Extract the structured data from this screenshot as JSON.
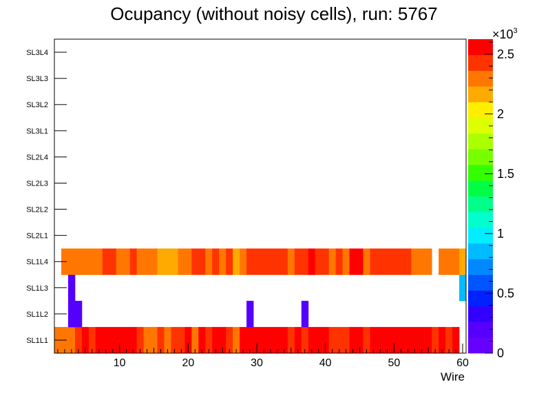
{
  "chart_data": {
    "type": "heatmap",
    "title": "Ocupancy (without noisy cells), run: 5767",
    "xlabel": "Wire",
    "ylabel": "",
    "xlim": [
      0.5,
      60.5
    ],
    "x_ticks": [
      "10",
      "20",
      "30",
      "40",
      "50",
      "60"
    ],
    "rows": [
      "SL1L1",
      "SL1L2",
      "SL1L3",
      "SL1L4",
      "SL2L1",
      "SL2L2",
      "SL2L3",
      "SL2L4",
      "SL3L1",
      "SL3L2",
      "SL3L3",
      "SL3L4"
    ],
    "z_range": [
      0,
      2625
    ],
    "colorbar": {
      "multiplier": "×10",
      "exponent": "3",
      "ticks": [
        "0",
        "0.5",
        "1",
        "1.5",
        "2",
        "2.5"
      ],
      "palette": [
        "#6600ff",
        "#5500ff",
        "#3300ff",
        "#0022ff",
        "#0055ff",
        "#0088ff",
        "#00bbff",
        "#00eeff",
        "#00ffcc",
        "#00ff88",
        "#00ff44",
        "#33ff00",
        "#77ff00",
        "#aaff00",
        "#ddff00",
        "#ffee00",
        "#ffaa00",
        "#ff7700",
        "#ff3300",
        "#ff0000"
      ]
    },
    "series": [
      {
        "name": "SL1L1",
        "values": [
          2260,
          2300,
          2260,
          2400,
          2530,
          2400,
          2530,
          2530,
          2530,
          2620,
          2620,
          2620,
          2400,
          2260,
          2260,
          2400,
          2260,
          2400,
          2400,
          2530,
          2260,
          2530,
          2400,
          2530,
          2530,
          2400,
          2260,
          2530,
          2530,
          2530,
          2530,
          2530,
          2620,
          2620,
          2400,
          2530,
          2400,
          2530,
          2530,
          2530,
          2400,
          2400,
          2400,
          2530,
          2620,
          2400,
          2620,
          2530,
          2620,
          2530,
          2530,
          2530,
          2530,
          2530,
          2530,
          2400,
          2530,
          2400,
          2530,
          null
        ]
      },
      {
        "name": "SL1L2",
        "values": [
          null,
          null,
          150,
          150,
          null,
          null,
          null,
          null,
          null,
          null,
          null,
          null,
          null,
          null,
          null,
          null,
          null,
          null,
          null,
          null,
          null,
          null,
          null,
          null,
          null,
          null,
          null,
          null,
          150,
          null,
          null,
          null,
          null,
          null,
          null,
          null,
          150,
          null,
          null,
          null,
          null,
          null,
          null,
          null,
          null,
          null,
          null,
          null,
          null,
          null,
          null,
          null,
          null,
          null,
          null,
          null,
          null,
          null,
          null,
          null
        ]
      },
      {
        "name": "SL1L3",
        "values": [
          null,
          null,
          150,
          null,
          null,
          null,
          null,
          null,
          null,
          null,
          null,
          null,
          null,
          null,
          null,
          null,
          null,
          null,
          null,
          null,
          null,
          null,
          null,
          null,
          null,
          null,
          null,
          null,
          null,
          null,
          null,
          null,
          null,
          null,
          null,
          null,
          null,
          null,
          null,
          null,
          null,
          null,
          null,
          null,
          null,
          null,
          null,
          null,
          null,
          null,
          null,
          null,
          null,
          null,
          null,
          null,
          null,
          null,
          null,
          850
        ]
      },
      {
        "name": "SL1L4",
        "values": [
          null,
          2260,
          2260,
          2260,
          2260,
          2260,
          2260,
          2400,
          2400,
          2260,
          2300,
          2400,
          2260,
          2260,
          2260,
          2100,
          2100,
          2100,
          2260,
          2260,
          2400,
          2400,
          2260,
          2400,
          2300,
          2400,
          2100,
          2300,
          2400,
          2400,
          2400,
          2400,
          2400,
          2400,
          2260,
          2400,
          2400,
          2530,
          2400,
          2400,
          2300,
          2400,
          2260,
          2530,
          2530,
          2260,
          2400,
          2400,
          2400,
          2400,
          2400,
          2400,
          2260,
          2260,
          2260,
          null,
          2260,
          2260,
          2260,
          2100
        ]
      },
      {
        "name": "SL2L1",
        "values": []
      },
      {
        "name": "SL2L2",
        "values": []
      },
      {
        "name": "SL2L3",
        "values": []
      },
      {
        "name": "SL2L4",
        "values": []
      },
      {
        "name": "SL3L1",
        "values": []
      },
      {
        "name": "SL3L2",
        "values": []
      },
      {
        "name": "SL3L3",
        "values": []
      },
      {
        "name": "SL3L4",
        "values": []
      }
    ]
  }
}
